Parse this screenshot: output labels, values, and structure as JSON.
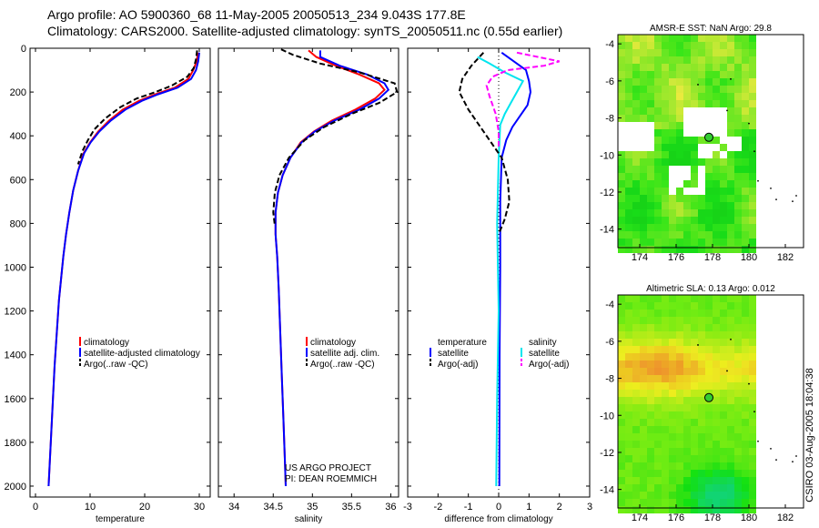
{
  "header": {
    "line1": "Argo profile: AO 5900360_68 11-May-2005 20050513_234 9.043S 177.8E",
    "line2": "Climatology: CARS2000. Satellite-adjusted climatology: synTS_20050511.nc (0.55d earlier)"
  },
  "credits": {
    "line1": "US ARGO PROJECT",
    "line2": "PI: DEAN ROEMMICH"
  },
  "side_label": "CSIRO 03-Aug-2005 18:04:38",
  "colors": {
    "climatology": "#ff0000",
    "satellite": "#0000ff",
    "argo": "#000000",
    "cyan": "#00e5ee",
    "magenta": "#ff00ff",
    "frame": "#000000"
  },
  "chart_data": [
    {
      "type": "line",
      "name": "temperature-panel",
      "xlabel": "temperature",
      "ylabel": "",
      "xlim": [
        -1,
        32
      ],
      "ylim": [
        2050,
        0
      ],
      "xticks": [
        0,
        10,
        20,
        30
      ],
      "yticks": [
        0,
        200,
        400,
        600,
        800,
        1000,
        1200,
        1400,
        1600,
        1800,
        2000
      ],
      "legend": [
        "climatology",
        "satellite-adjusted climatology",
        "Argo(..raw -QC)"
      ],
      "series": [
        {
          "name": "climatology",
          "color": "#ff0000",
          "dash": "",
          "points": [
            [
              29.8,
              20
            ],
            [
              29.5,
              60
            ],
            [
              28.9,
              100
            ],
            [
              28,
              140
            ],
            [
              25.5,
              180
            ],
            [
              22,
              210
            ],
            [
              19,
              240
            ],
            [
              16,
              280
            ],
            [
              13.5,
              330
            ],
            [
              11.5,
              380
            ],
            [
              10,
              430
            ],
            [
              8.8,
              480
            ],
            [
              7.8,
              560
            ],
            [
              6.9,
              650
            ],
            [
              6.2,
              750
            ],
            [
              5.6,
              850
            ],
            [
              5.1,
              950
            ],
            [
              4.7,
              1050
            ],
            [
              4.3,
              1150
            ],
            [
              3.9,
              1300
            ],
            [
              3.5,
              1450
            ],
            [
              3.2,
              1600
            ],
            [
              2.9,
              1750
            ],
            [
              2.6,
              1900
            ],
            [
              2.4,
              2000
            ]
          ]
        },
        {
          "name": "satellite-adjusted climatology",
          "color": "#0000ff",
          "dash": "",
          "points": [
            [
              30,
              20
            ],
            [
              29.8,
              60
            ],
            [
              29.4,
              100
            ],
            [
              28.5,
              140
            ],
            [
              26,
              180
            ],
            [
              22.5,
              210
            ],
            [
              19.5,
              240
            ],
            [
              16.5,
              280
            ],
            [
              13.8,
              330
            ],
            [
              11.7,
              380
            ],
            [
              10.1,
              430
            ],
            [
              8.9,
              480
            ],
            [
              7.8,
              560
            ],
            [
              6.9,
              650
            ],
            [
              6.2,
              750
            ],
            [
              5.6,
              850
            ],
            [
              5.1,
              950
            ],
            [
              4.7,
              1050
            ],
            [
              4.3,
              1150
            ],
            [
              3.9,
              1300
            ],
            [
              3.5,
              1450
            ],
            [
              3.2,
              1600
            ],
            [
              2.9,
              1750
            ],
            [
              2.6,
              1900
            ],
            [
              2.4,
              2000
            ]
          ]
        },
        {
          "name": "Argo(..raw -QC)",
          "color": "#000000",
          "dash": "6,3",
          "points": [
            [
              29.6,
              10
            ],
            [
              29.4,
              50
            ],
            [
              29,
              90
            ],
            [
              27.8,
              130
            ],
            [
              25,
              170
            ],
            [
              22,
              200
            ],
            [
              18.5,
              230
            ],
            [
              15.5,
              270
            ],
            [
              12.8,
              320
            ],
            [
              10.8,
              370
            ],
            [
              9.6,
              420
            ],
            [
              8.6,
              470
            ],
            [
              7.8,
              530
            ]
          ]
        }
      ]
    },
    {
      "type": "line",
      "name": "salinity-panel",
      "xlabel": "salinity",
      "ylabel": "",
      "xlim": [
        33.8,
        36.1
      ],
      "ylim": [
        2050,
        0
      ],
      "xticks": [
        34,
        34.5,
        35,
        35.5,
        36
      ],
      "yticks": [
        0,
        200,
        400,
        600,
        800,
        1000,
        1200,
        1400,
        1600,
        1800,
        2000
      ],
      "legend": [
        "climatology",
        "satellite adj. clim.",
        "Argo(..raw -QC)"
      ],
      "series": [
        {
          "name": "climatology",
          "color": "#ff0000",
          "dash": "",
          "points": [
            [
              34.95,
              10
            ],
            [
              35.05,
              40
            ],
            [
              35.3,
              80
            ],
            [
              35.6,
              120
            ],
            [
              35.85,
              160
            ],
            [
              35.92,
              190
            ],
            [
              35.8,
              230
            ],
            [
              35.55,
              280
            ],
            [
              35.25,
              330
            ],
            [
              35.02,
              380
            ],
            [
              34.85,
              430
            ],
            [
              34.72,
              500
            ],
            [
              34.62,
              580
            ],
            [
              34.56,
              660
            ],
            [
              34.53,
              750
            ],
            [
              34.53,
              850
            ],
            [
              34.55,
              950
            ],
            [
              34.57,
              1100
            ],
            [
              34.59,
              1300
            ],
            [
              34.61,
              1500
            ],
            [
              34.63,
              1700
            ],
            [
              34.65,
              1900
            ],
            [
              34.66,
              2000
            ]
          ]
        },
        {
          "name": "satellite adj. clim.",
          "color": "#0000ff",
          "dash": "",
          "points": [
            [
              35.1,
              10
            ],
            [
              35.1,
              40
            ],
            [
              35.35,
              80
            ],
            [
              35.7,
              120
            ],
            [
              35.92,
              160
            ],
            [
              35.97,
              190
            ],
            [
              35.85,
              230
            ],
            [
              35.6,
              280
            ],
            [
              35.28,
              330
            ],
            [
              35.03,
              380
            ],
            [
              34.86,
              430
            ],
            [
              34.72,
              500
            ],
            [
              34.62,
              580
            ],
            [
              34.56,
              660
            ],
            [
              34.53,
              750
            ],
            [
              34.53,
              850
            ],
            [
              34.55,
              950
            ],
            [
              34.57,
              1100
            ],
            [
              34.59,
              1300
            ],
            [
              34.61,
              1500
            ],
            [
              34.63,
              1700
            ],
            [
              34.65,
              1900
            ],
            [
              34.66,
              2000
            ]
          ]
        },
        {
          "name": "Argo(..raw -QC)",
          "color": "#000000",
          "dash": "6,3",
          "points": [
            [
              34.6,
              5
            ],
            [
              34.75,
              30
            ],
            [
              35.1,
              70
            ],
            [
              35.6,
              110
            ],
            [
              36.05,
              160
            ],
            [
              36.08,
              200
            ],
            [
              35.85,
              250
            ],
            [
              35.5,
              300
            ],
            [
              35.15,
              360
            ],
            [
              34.9,
              420
            ],
            [
              34.7,
              500
            ],
            [
              34.58,
              580
            ],
            [
              34.52,
              660
            ],
            [
              34.5,
              750
            ],
            [
              34.52,
              810
            ]
          ]
        }
      ]
    },
    {
      "type": "line",
      "name": "difference-panel",
      "xlabel": "difference from climatology",
      "ylabel": "",
      "xlim": [
        -3,
        3
      ],
      "ylim": [
        2050,
        0
      ],
      "xticks": [
        -3,
        -2,
        -1,
        0,
        1,
        2,
        3
      ],
      "yticks": [
        0,
        200,
        400,
        600,
        800,
        1000,
        1200,
        1400,
        1600,
        1800,
        2000
      ],
      "legend": [
        "temperature",
        "satellite",
        "Argo(-adj)",
        "salinity",
        "satellite",
        "Argo(-adj)"
      ],
      "series": [
        {
          "name": "temperature satellite",
          "color": "#0000ff",
          "dash": "",
          "points": [
            [
              0.1,
              20
            ],
            [
              0.5,
              60
            ],
            [
              0.9,
              100
            ],
            [
              1,
              150
            ],
            [
              1.05,
              200
            ],
            [
              0.95,
              260
            ],
            [
              0.7,
              310
            ],
            [
              0.45,
              360
            ],
            [
              0.25,
              420
            ],
            [
              0.1,
              500
            ],
            [
              0.05,
              700
            ],
            [
              0.05,
              1000
            ],
            [
              0.03,
              1400
            ],
            [
              0.02,
              2000
            ]
          ]
        },
        {
          "name": "salinity satellite",
          "color": "#00e5ee",
          "dash": "",
          "points": [
            [
              -0.7,
              40
            ],
            [
              -0.3,
              70
            ],
            [
              0.2,
              110
            ],
            [
              0.8,
              150
            ],
            [
              0.6,
              200
            ],
            [
              0.4,
              250
            ],
            [
              0.2,
              300
            ],
            [
              0.05,
              350
            ],
            [
              0,
              500
            ],
            [
              -0.05,
              800
            ],
            [
              0,
              1200
            ],
            [
              -0.05,
              1600
            ],
            [
              -0.08,
              2000
            ]
          ]
        },
        {
          "name": "temperature Argo(-adj)",
          "color": "#000000",
          "dash": "6,3",
          "points": [
            [
              -0.5,
              20
            ],
            [
              -0.9,
              80
            ],
            [
              -1.2,
              140
            ],
            [
              -1.3,
              200
            ],
            [
              -1,
              280
            ],
            [
              -0.6,
              360
            ],
            [
              -0.2,
              440
            ],
            [
              0.1,
              500
            ],
            [
              0.3,
              600
            ],
            [
              0.35,
              700
            ],
            [
              0.2,
              780
            ],
            [
              0,
              850
            ]
          ]
        },
        {
          "name": "salinity Argo(-adj)",
          "color": "#ff00ff",
          "dash": "6,3",
          "points": [
            [
              0.6,
              20
            ],
            [
              2,
              60
            ],
            [
              1.5,
              80
            ],
            [
              0.3,
              100
            ],
            [
              -0.2,
              130
            ],
            [
              -0.4,
              170
            ],
            [
              -0.3,
              220
            ],
            [
              -0.1,
              300
            ],
            [
              0,
              380
            ],
            [
              0,
              450
            ]
          ]
        }
      ]
    },
    {
      "type": "heatmap",
      "name": "sst-map",
      "title": "AMSR-E SST: NaN Argo: 29.8",
      "xlim": [
        172.8,
        183
      ],
      "ylim": [
        -15,
        -3.5
      ],
      "xticks": [
        174,
        176,
        178,
        180,
        182
      ],
      "yticks": [
        -4,
        -6,
        -8,
        -10,
        -12,
        -14
      ],
      "profile_position": [
        177.8,
        -9.043
      ]
    },
    {
      "type": "heatmap",
      "name": "sla-map",
      "title": "Altimetric SLA: 0.13 Argo: 0.012",
      "xlim": [
        172.8,
        183
      ],
      "ylim": [
        -15,
        -3.5
      ],
      "xticks": [
        174,
        176,
        178,
        180,
        182
      ],
      "yticks": [
        -4,
        -6,
        -8,
        -10,
        -12,
        -14
      ],
      "profile_position": [
        177.8,
        -9.043
      ]
    }
  ]
}
